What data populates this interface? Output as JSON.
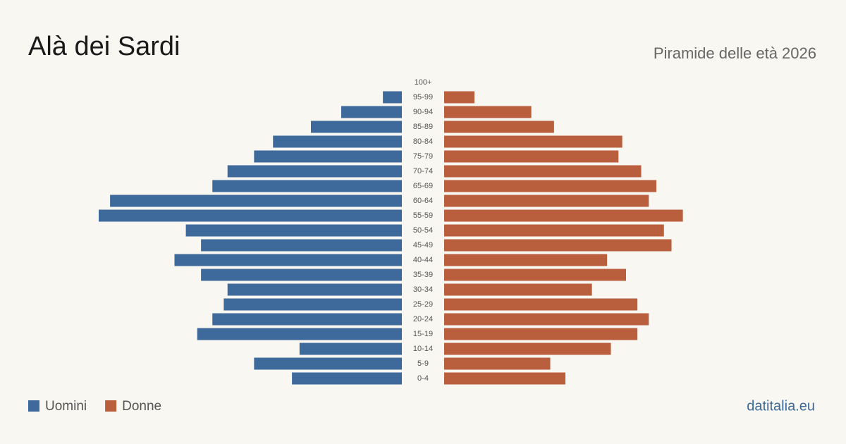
{
  "chart_data": {
    "type": "pyramid",
    "title": "Alà dei Sardi",
    "subtitle": "Piramide delle età 2026",
    "source": "datitalia.eu",
    "categories": [
      "100+",
      "95-99",
      "90-94",
      "85-89",
      "80-84",
      "75-79",
      "70-74",
      "65-69",
      "60-64",
      "55-59",
      "50-54",
      "45-49",
      "40-44",
      "35-39",
      "30-34",
      "25-29",
      "20-24",
      "15-19",
      "10-14",
      "5-9",
      "0-4"
    ],
    "series": [
      {
        "name": "Uomini",
        "color": "#3d6a9a",
        "values": [
          0,
          5,
          16,
          24,
          34,
          39,
          46,
          50,
          77,
          80,
          57,
          53,
          60,
          53,
          46,
          47,
          50,
          54,
          27,
          39,
          29
        ]
      },
      {
        "name": "Donne",
        "color": "#b95f3e",
        "values": [
          0,
          8,
          23,
          29,
          47,
          46,
          52,
          56,
          54,
          63,
          58,
          60,
          43,
          48,
          39,
          51,
          54,
          51,
          44,
          28,
          32
        ]
      }
    ]
  }
}
